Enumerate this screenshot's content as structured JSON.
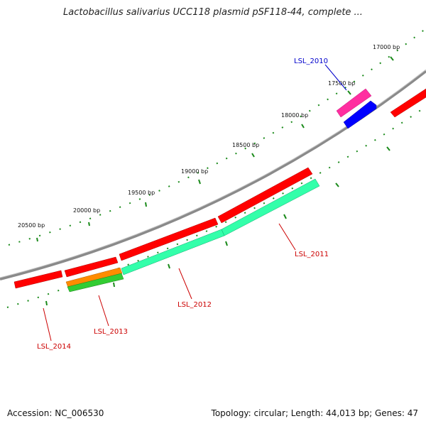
{
  "title": "Lactobacillus salivarius UCC118 plasmid pSF118-44, complete ...",
  "footer": {
    "accession": "Accession: NC_006530",
    "stats": "Topology: circular; Length: 44,013 bp; Genes: 47"
  },
  "ticks": [
    {
      "label": "17000 bp",
      "bp": 17000
    },
    {
      "label": "17500 bp",
      "bp": 17500
    },
    {
      "label": "18000 bp",
      "bp": 18000
    },
    {
      "label": "18500 bp",
      "bp": 18500
    },
    {
      "label": "19000 bp",
      "bp": 19000
    },
    {
      "label": "19500 bp",
      "bp": 19500
    },
    {
      "label": "20000 bp",
      "bp": 20000
    },
    {
      "label": "20500 bp",
      "bp": 20500
    }
  ],
  "genes": [
    {
      "label": "LSL_2010",
      "color": "#0000cc"
    },
    {
      "label": "LSL_2011",
      "color": "#cc0000"
    },
    {
      "label": "LSL_2012",
      "color": "#cc0000"
    },
    {
      "label": "LSL_2013",
      "color": "#cc0000"
    },
    {
      "label": "LSL_2014",
      "color": "#cc0000"
    }
  ],
  "colors": {
    "backbone": "#808080",
    "cds": "#ff0000",
    "gene_feature": "#33ffaa",
    "pink_feature": "#ff2ea0",
    "blue_feature": "#0000ff",
    "orange_feature": "#ff8c00",
    "green_feature": "#33cc33",
    "tick": "#1a8a1a"
  }
}
